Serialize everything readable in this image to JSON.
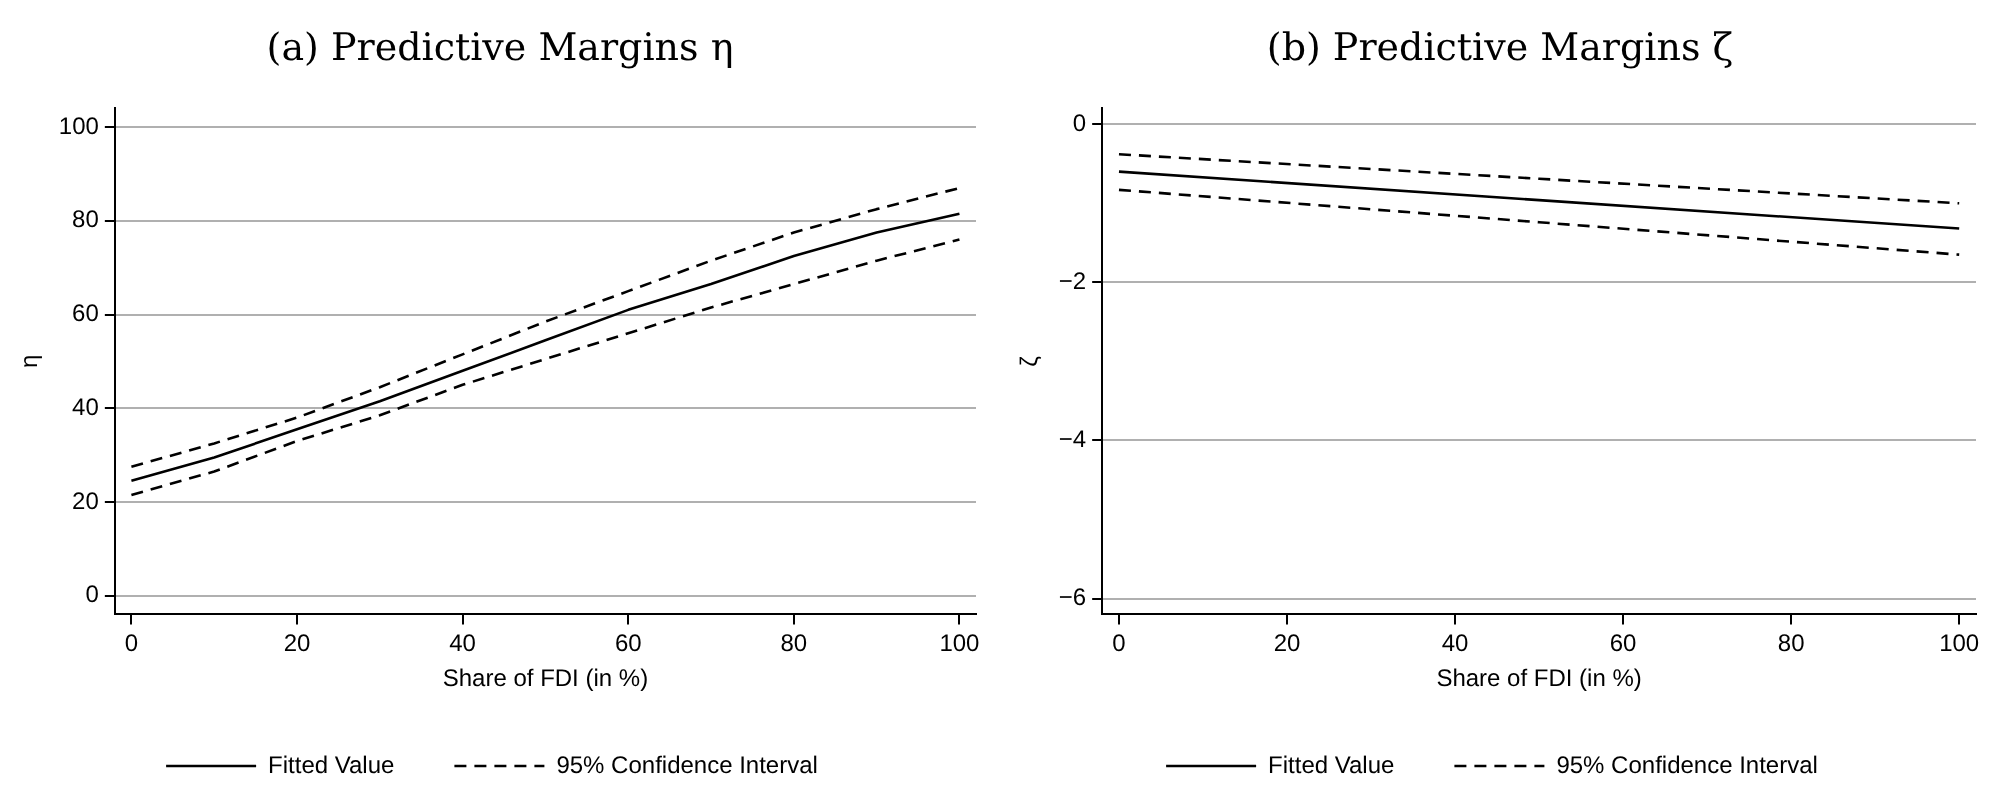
{
  "chart_data": [
    {
      "type": "line",
      "title": "(a) Predictive Margins η",
      "xlabel": "Share of FDI (in %)",
      "ylabel": "η",
      "x": [
        0,
        10,
        20,
        30,
        40,
        50,
        60,
        70,
        80,
        90,
        100
      ],
      "series": [
        {
          "name": "Fitted Value",
          "color": "#000000",
          "line_style": "solid",
          "values": [
            24.5,
            29.5,
            35.5,
            41.5,
            48,
            54.5,
            61,
            66.5,
            72.5,
            77.5,
            81.5
          ]
        },
        {
          "name": "95% Confidence Interval",
          "color": "#000000",
          "line_style": "dashed",
          "values": [
            27.5,
            32.5,
            38,
            44.5,
            51.5,
            58.5,
            65,
            71.5,
            77.5,
            82.5,
            87
          ]
        },
        {
          "color": "#000000",
          "line_style": "dashed",
          "values": [
            21.5,
            26.5,
            33,
            38.5,
            45,
            50.5,
            56,
            61.5,
            66.5,
            71.5,
            76
          ]
        }
      ],
      "xlim": [
        -2,
        102
      ],
      "xticks": [
        0,
        20,
        40,
        60,
        80,
        100
      ],
      "ylim": [
        -4,
        104
      ],
      "yticks": [
        0,
        20,
        40,
        60,
        80,
        100
      ],
      "grid": "y",
      "legend": "bottom",
      "marker": "none"
    },
    {
      "type": "line",
      "title": "(b) Predictive Margins ζ",
      "xlabel": "Share of FDI (in %)",
      "ylabel": "ζ",
      "x": [
        0,
        50,
        100
      ],
      "series": [
        {
          "name": "Fitted Value",
          "color": "#000000",
          "line_style": "solid",
          "values": [
            -0.6,
            -0.96,
            -1.32
          ]
        },
        {
          "name": "95% Confidence Interval",
          "color": "#000000",
          "line_style": "dashed",
          "values": [
            -0.38,
            -0.69,
            -1.0
          ]
        },
        {
          "color": "#000000",
          "line_style": "dashed",
          "values": [
            -0.83,
            -1.24,
            -1.65
          ]
        }
      ],
      "xlim": [
        -2,
        102
      ],
      "xticks": [
        0,
        20,
        40,
        60,
        80,
        100
      ],
      "ylim": [
        -6.2,
        0.2
      ],
      "yticks": [
        0,
        -2,
        -4,
        -6
      ],
      "grid": "y",
      "legend": "bottom",
      "marker": "none"
    }
  ]
}
